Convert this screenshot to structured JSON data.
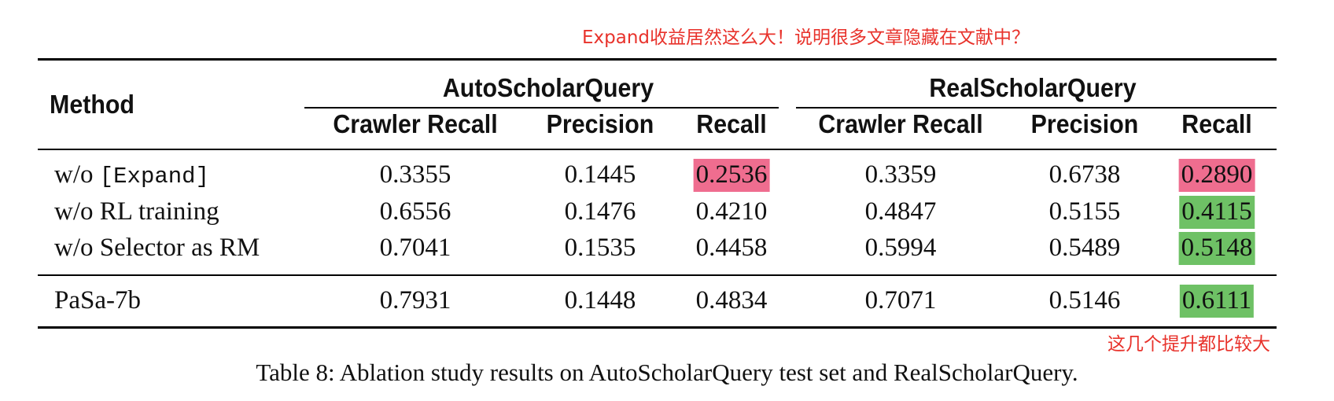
{
  "annotations": {
    "top": "Expand收益居然这么大！说明很多文章隐藏在文献中？",
    "bottom": "这几个提升都比较大"
  },
  "table": {
    "method_header": "Method",
    "groups": [
      "AutoScholarQuery",
      "RealScholarQuery"
    ],
    "subheaders": [
      "Crawler Recall",
      "Precision",
      "Recall",
      "Crawler Recall",
      "Precision",
      "Recall"
    ],
    "rows": [
      {
        "method_prefix": "w/o ",
        "method_code": "[Expand]",
        "cells": [
          "0.3355",
          "0.1445",
          "0.2536",
          "0.3359",
          "0.6738",
          "0.2890"
        ]
      },
      {
        "method": "w/o RL training",
        "cells": [
          "0.6556",
          "0.1476",
          "0.4210",
          "0.4847",
          "0.5155",
          "0.4115"
        ]
      },
      {
        "method": "w/o Selector as RM",
        "cells": [
          "0.7041",
          "0.1535",
          "0.4458",
          "0.5994",
          "0.5489",
          "0.5148"
        ]
      },
      {
        "method": "PaSa-7b",
        "cells": [
          "0.7931",
          "0.1448",
          "0.4834",
          "0.7071",
          "0.5146",
          "0.6111"
        ]
      }
    ]
  },
  "highlight_colors": {
    "decrease": "#ef6d8f",
    "improvement": "#6ec165"
  },
  "caption": "Table 8: Ablation study results on AutoScholarQuery test set and RealScholarQuery."
}
